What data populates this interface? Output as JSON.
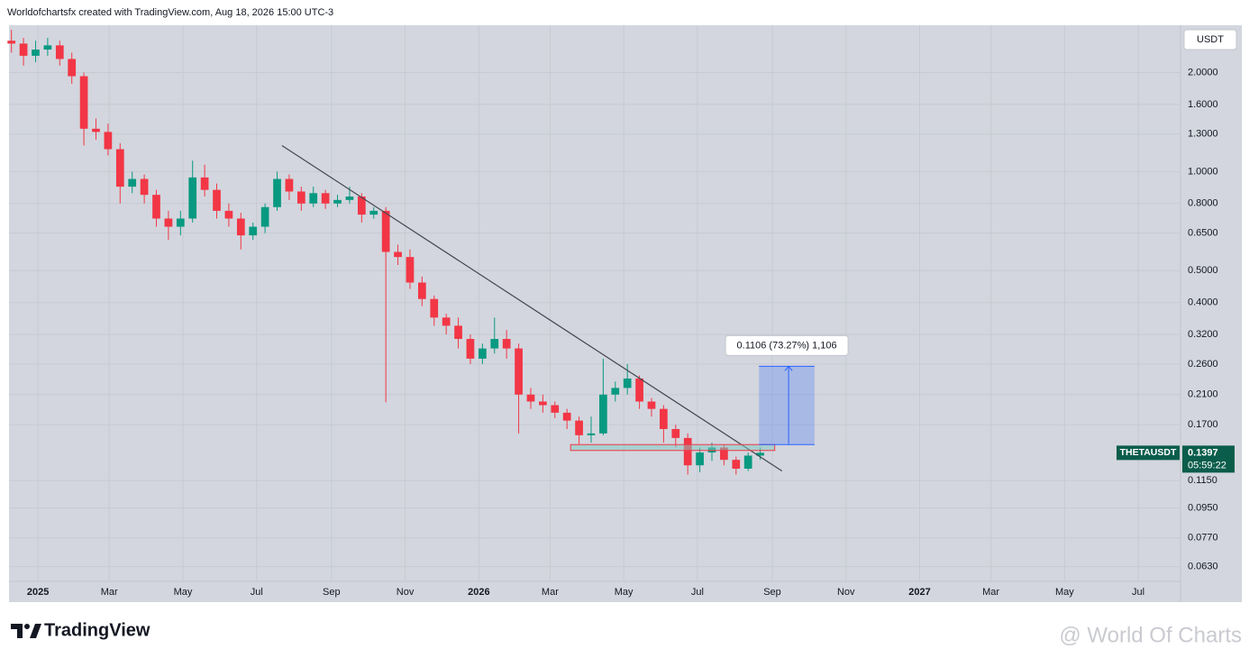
{
  "chart_data": {
    "type": "candlestick",
    "title": "Worldofchartsfx created with TradingView.com, Aug 18, 2026 15:00 UTC-3",
    "currency": "USDT",
    "brand": "TradingView",
    "watermark": "@ World Of Charts",
    "log_scale": true,
    "grid": true,
    "up_color": "#089981",
    "down_color": "#f23645",
    "xlim": [
      -24,
      946
    ],
    "xticks": [
      {
        "value": 0,
        "label": "2025"
      },
      {
        "value": 59,
        "label": "Mar"
      },
      {
        "value": 120,
        "label": "May"
      },
      {
        "value": 181,
        "label": "Jul"
      },
      {
        "value": 243,
        "label": "Sep"
      },
      {
        "value": 304,
        "label": "Nov"
      },
      {
        "value": 365,
        "label": "2026"
      },
      {
        "value": 424,
        "label": "Mar"
      },
      {
        "value": 485,
        "label": "May"
      },
      {
        "value": 546,
        "label": "Jul"
      },
      {
        "value": 608,
        "label": "Sep"
      },
      {
        "value": 669,
        "label": "Nov"
      },
      {
        "value": 730,
        "label": "2027"
      },
      {
        "value": 789,
        "label": "Mar"
      },
      {
        "value": 850,
        "label": "May"
      },
      {
        "value": 911,
        "label": "Jul"
      }
    ],
    "ylim": [
      0.0568,
      2.786
    ],
    "yticks": [
      {
        "value": 2.0,
        "label": "2.0000"
      },
      {
        "value": 1.6,
        "label": "1.6000"
      },
      {
        "value": 1.3,
        "label": "1.3000"
      },
      {
        "value": 1.0,
        "label": "1.0000"
      },
      {
        "value": 0.8,
        "label": "0.8000"
      },
      {
        "value": 0.65,
        "label": "0.6500"
      },
      {
        "value": 0.5,
        "label": "0.5000"
      },
      {
        "value": 0.4,
        "label": "0.4000"
      },
      {
        "value": 0.32,
        "label": "0.3200"
      },
      {
        "value": 0.26,
        "label": "0.2600"
      },
      {
        "value": 0.21,
        "label": "0.2100"
      },
      {
        "value": 0.17,
        "label": "0.1700"
      },
      {
        "value": 0.115,
        "label": "0.1150"
      },
      {
        "value": 0.095,
        "label": "0.0950"
      },
      {
        "value": 0.077,
        "label": "0.0770"
      },
      {
        "value": 0.063,
        "label": "0.0630"
      }
    ],
    "candles": {
      "x": [
        -22,
        -12,
        -2,
        8,
        18,
        28,
        38,
        48,
        58,
        68,
        78,
        88,
        98,
        108,
        118,
        128,
        138,
        148,
        158,
        168,
        178,
        188,
        198,
        208,
        218,
        228,
        238,
        248,
        258,
        268,
        278,
        288,
        298,
        308,
        318,
        328,
        338,
        348,
        358,
        368,
        378,
        388,
        398,
        408,
        418,
        428,
        438,
        448,
        458,
        468,
        478,
        488,
        498,
        508,
        518,
        528,
        538,
        548,
        558,
        568,
        578,
        588,
        598
      ],
      "open": [
        2.5,
        2.45,
        2.25,
        2.35,
        2.42,
        2.2,
        1.95,
        1.35,
        1.32,
        1.17,
        0.9,
        0.95,
        0.85,
        0.72,
        0.68,
        0.72,
        0.96,
        0.88,
        0.76,
        0.72,
        0.64,
        0.68,
        0.78,
        0.95,
        0.87,
        0.8,
        0.86,
        0.8,
        0.82,
        0.84,
        0.74,
        0.76,
        0.57,
        0.55,
        0.46,
        0.41,
        0.36,
        0.34,
        0.31,
        0.27,
        0.29,
        0.31,
        0.29,
        0.21,
        0.2,
        0.195,
        0.185,
        0.175,
        0.158,
        0.16,
        0.21,
        0.22,
        0.235,
        0.2,
        0.19,
        0.165,
        0.155,
        0.128,
        0.14,
        0.145,
        0.133,
        0.125,
        0.137
      ],
      "high": [
        2.7,
        2.55,
        2.5,
        2.55,
        2.5,
        2.3,
        2.0,
        1.45,
        1.4,
        1.22,
        1.0,
        0.98,
        0.88,
        0.76,
        0.76,
        1.08,
        1.05,
        0.92,
        0.8,
        0.75,
        0.7,
        0.8,
        1.0,
        0.98,
        0.9,
        0.9,
        0.88,
        0.85,
        0.9,
        0.86,
        0.78,
        0.78,
        0.6,
        0.58,
        0.48,
        0.42,
        0.37,
        0.36,
        0.32,
        0.3,
        0.36,
        0.33,
        0.3,
        0.22,
        0.21,
        0.2,
        0.19,
        0.18,
        0.18,
        0.27,
        0.23,
        0.26,
        0.24,
        0.205,
        0.195,
        0.17,
        0.16,
        0.145,
        0.15,
        0.148,
        0.136,
        0.14,
        0.145
      ],
      "low": [
        2.3,
        2.1,
        2.15,
        2.25,
        2.1,
        1.85,
        1.2,
        1.25,
        1.12,
        0.8,
        0.86,
        0.8,
        0.68,
        0.62,
        0.64,
        0.7,
        0.84,
        0.72,
        0.68,
        0.58,
        0.62,
        0.65,
        0.76,
        0.82,
        0.76,
        0.78,
        0.77,
        0.78,
        0.8,
        0.7,
        0.72,
        0.199,
        0.52,
        0.44,
        0.39,
        0.34,
        0.32,
        0.29,
        0.26,
        0.26,
        0.28,
        0.27,
        0.16,
        0.19,
        0.185,
        0.178,
        0.165,
        0.148,
        0.15,
        0.158,
        0.2,
        0.21,
        0.19,
        0.18,
        0.15,
        0.145,
        0.12,
        0.122,
        0.132,
        0.128,
        0.12,
        0.123,
        0.133
      ],
      "close": [
        2.45,
        2.25,
        2.35,
        2.42,
        2.2,
        1.95,
        1.35,
        1.32,
        1.17,
        0.9,
        0.95,
        0.85,
        0.72,
        0.68,
        0.72,
        0.96,
        0.88,
        0.76,
        0.72,
        0.64,
        0.68,
        0.78,
        0.95,
        0.87,
        0.8,
        0.86,
        0.8,
        0.82,
        0.84,
        0.74,
        0.76,
        0.57,
        0.55,
        0.46,
        0.41,
        0.36,
        0.34,
        0.31,
        0.27,
        0.29,
        0.31,
        0.29,
        0.21,
        0.2,
        0.195,
        0.185,
        0.175,
        0.158,
        0.16,
        0.21,
        0.22,
        0.235,
        0.2,
        0.19,
        0.165,
        0.155,
        0.128,
        0.14,
        0.145,
        0.133,
        0.125,
        0.137,
        0.1397
      ]
    },
    "trendline": {
      "x": [
        202,
        616
      ],
      "y": [
        1.2,
        0.123
      ],
      "color": "#434651"
    },
    "support_zone": {
      "x": [
        441,
        610
      ],
      "y": [
        0.142,
        0.148
      ],
      "color": "#f23645"
    },
    "projection": {
      "x": [
        597,
        643
      ],
      "y": [
        0.148,
        0.256
      ],
      "label": "0.1106 (73.27%) 1,106",
      "color": "#2962ff"
    },
    "last_price": {
      "symbol": "THETAUSDT",
      "value": 0.1397,
      "value_label": "0.1397",
      "countdown": "05:59:22",
      "color": "#0b5d4b"
    }
  }
}
